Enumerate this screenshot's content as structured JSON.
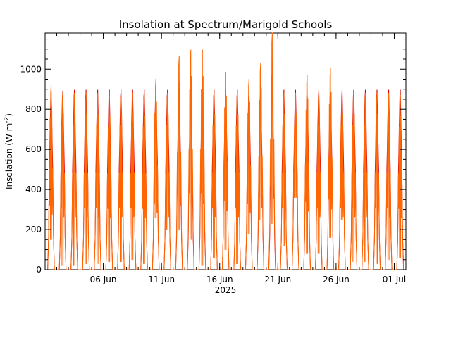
{
  "chart_data": {
    "type": "line",
    "title": "Insolation at Spectrum/Marigold Schools",
    "ylabel": "Insolation (W m",
    "ylabel_superscript": "-2",
    "ylabel_close": ")",
    "xlabel": "2025",
    "ylim": [
      0,
      1180
    ],
    "xlim": [
      "2025-06-01",
      "2025-07-02"
    ],
    "y_ticks": [
      0,
      200,
      400,
      600,
      800,
      1000
    ],
    "x_ticks": [
      {
        "date": "2025-06-06",
        "label": "06 Jun"
      },
      {
        "date": "2025-06-11",
        "label": "11 Jun"
      },
      {
        "date": "2025-06-16",
        "label": "16 Jun"
      },
      {
        "date": "2025-06-21",
        "label": "21 Jun"
      },
      {
        "date": "2025-06-26",
        "label": "26 Jun"
      },
      {
        "date": "2025-07-01",
        "label": "01 Jul"
      }
    ],
    "grid": false,
    "series": [
      {
        "color": "#dd0000",
        "line_style": "solid",
        "daily_peak_values": [
          890,
          890,
          895,
          895,
          895,
          895,
          895,
          895,
          895,
          895,
          895,
          895,
          895,
          895,
          895,
          895,
          895,
          895,
          895,
          895,
          895,
          895,
          895,
          895,
          895,
          895,
          895,
          895,
          895,
          895,
          895
        ]
      },
      {
        "color": "#ff6600",
        "line_style": "solid",
        "daily_peak_values": [
          920,
          880,
          880,
          880,
          880,
          870,
          880,
          880,
          870,
          950,
          880,
          1065,
          1095,
          1095,
          880,
          985,
          880,
          950,
          1030,
          1180,
          880,
          880,
          970,
          880,
          1005,
          880,
          880,
          880,
          880,
          880,
          870
        ],
        "daily_low_values": [
          150,
          20,
          20,
          30,
          30,
          40,
          40,
          50,
          30,
          260,
          200,
          200,
          150,
          20,
          60,
          100,
          30,
          180,
          250,
          230,
          120,
          360,
          80,
          80,
          160,
          250,
          40,
          40,
          30,
          50,
          60
        ]
      }
    ]
  }
}
